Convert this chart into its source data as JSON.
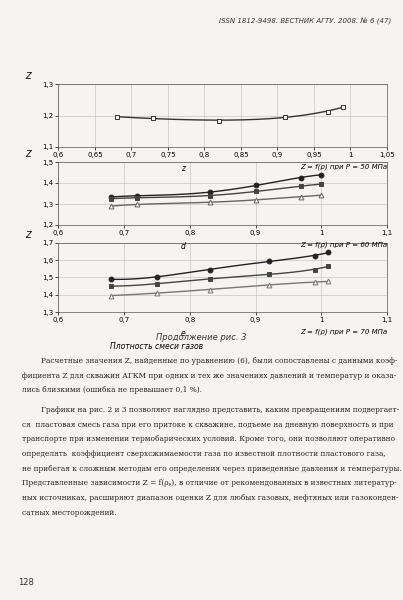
{
  "header": "ISSN 1812-9498. ВЕСТНИК АГТУ. 2008. № 6 (47)",
  "bg_color": "#f5f4f1",
  "chart1": {
    "label": "Z = f(ρ) при P = 50 МПа",
    "xlabel": "z",
    "ylim": [
      1.1,
      1.3
    ],
    "yticks": [
      1.1,
      1.2,
      1.3
    ],
    "xlim": [
      0.6,
      1.05
    ],
    "xticks": [
      0.6,
      0.65,
      0.7,
      0.75,
      0.8,
      0.85,
      0.9,
      0.95,
      1.0,
      1.05
    ],
    "xtick_labels": [
      "0,6",
      "0,65",
      "0,7",
      "0,75",
      "0,8",
      "0,85",
      "0,9",
      "0,95",
      "1",
      "1,05"
    ],
    "ytick_labels": [
      "1,1",
      "1,2",
      "1,3"
    ],
    "curves": [
      {
        "x": [
          0.68,
          0.73,
          0.82,
          0.91,
          0.97,
          0.99
        ],
        "y": [
          1.196,
          1.191,
          1.184,
          1.196,
          1.212,
          1.228
        ],
        "marker": "s",
        "markersize": 3,
        "color": "#333333",
        "linewidth": 1.0,
        "filled": false
      }
    ]
  },
  "chart2": {
    "label": "Z = f(ρ) при P = 60 МПа",
    "xlabel": "d",
    "ylim": [
      1.2,
      1.5
    ],
    "yticks": [
      1.2,
      1.3,
      1.4,
      1.5
    ],
    "xlim": [
      0.6,
      1.1
    ],
    "xticks": [
      0.6,
      0.7,
      0.8,
      0.9,
      1.0,
      1.1
    ],
    "xtick_labels": [
      "0,6",
      "0,7",
      "0,8",
      "0,9",
      "1",
      "1,1"
    ],
    "ytick_labels": [
      "1,2",
      "1,3",
      "1,4",
      "1,5"
    ],
    "curves": [
      {
        "x": [
          0.68,
          0.72,
          0.83,
          0.9,
          0.97,
          1.0
        ],
        "y": [
          1.333,
          1.34,
          1.355,
          1.39,
          1.425,
          1.44
        ],
        "marker": "o",
        "markersize": 3.5,
        "color": "#222222",
        "linewidth": 1.0,
        "filled": true
      },
      {
        "x": [
          0.68,
          0.72,
          0.83,
          0.9,
          0.97,
          1.0
        ],
        "y": [
          1.325,
          1.33,
          1.34,
          1.36,
          1.385,
          1.395
        ],
        "marker": "s",
        "markersize": 3.5,
        "color": "#444444",
        "linewidth": 1.0,
        "filled": true
      },
      {
        "x": [
          0.68,
          0.72,
          0.83,
          0.9,
          0.97,
          1.0
        ],
        "y": [
          1.29,
          1.298,
          1.308,
          1.32,
          1.335,
          1.342
        ],
        "marker": "^",
        "markersize": 3.5,
        "color": "#666666",
        "linewidth": 1.0,
        "filled": false
      }
    ]
  },
  "chart3": {
    "label": "Z = f(ρ) при P = 70 МПа",
    "xlabel": "e",
    "bottom_label": "Плотность смеси газов",
    "ylim": [
      1.3,
      1.7
    ],
    "yticks": [
      1.3,
      1.4,
      1.5,
      1.6,
      1.7
    ],
    "xlim": [
      0.6,
      1.1
    ],
    "xticks": [
      0.6,
      0.7,
      0.8,
      0.9,
      1.0,
      1.1
    ],
    "xtick_labels": [
      "0,6",
      "0,7",
      "0,8",
      "0,9",
      "1",
      "1,1"
    ],
    "ytick_labels": [
      "1,3",
      "1,4",
      "1,5",
      "1,6",
      "1,7"
    ],
    "curves": [
      {
        "x": [
          0.68,
          0.75,
          0.83,
          0.92,
          0.99,
          1.01
        ],
        "y": [
          1.49,
          1.505,
          1.545,
          1.595,
          1.625,
          1.645
        ],
        "marker": "o",
        "markersize": 3.5,
        "color": "#222222",
        "linewidth": 1.0,
        "filled": true
      },
      {
        "x": [
          0.68,
          0.75,
          0.83,
          0.92,
          0.99,
          1.01
        ],
        "y": [
          1.45,
          1.465,
          1.49,
          1.52,
          1.545,
          1.565
        ],
        "marker": "s",
        "markersize": 3.5,
        "color": "#444444",
        "linewidth": 1.0,
        "filled": true
      },
      {
        "x": [
          0.68,
          0.75,
          0.83,
          0.92,
          0.99,
          1.01
        ],
        "y": [
          1.395,
          1.41,
          1.43,
          1.458,
          1.472,
          1.478
        ],
        "marker": "^",
        "markersize": 3.5,
        "color": "#777777",
        "linewidth": 1.0,
        "filled": false
      }
    ]
  },
  "continuation_text": "Продолжение рис. 3",
  "body_text_para1": [
    "        Расчетные значения Z, найденные по уравнению (6), были сопоставлены с данными коэф-",
    "фициента Z для скважин АГКМ при одних и тех же значениях давлений и температур и оказа-",
    "лись близкими (ошибка не превышает 0,1 %)."
  ],
  "body_text_para2": [
    "        Графики на рис. 2 и 3 позволяют наглядно представить, каким превращениям подвергает-",
    "ся  пластовая смесь газа при его притоке к скважине, подъеме на дневную поверхность и при",
    "транспорте при изменении термобарических условий. Кроме того, они позволяют оперативно",
    "определять  коэффициент сверхсжимаемости газа по известной плотности пластового газа,",
    "не прибегая к сложным методам его определения через приведенные давления и температуры.",
    "Представленные зависимости Z = f(ρᵨ), в отличие от рекомендованных в известных литератур-",
    "ных источниках, расширяют диапазон оценки Z для любых газовых, нефтяных или газоконден-",
    "сатных месторождений."
  ],
  "page_number": "128"
}
